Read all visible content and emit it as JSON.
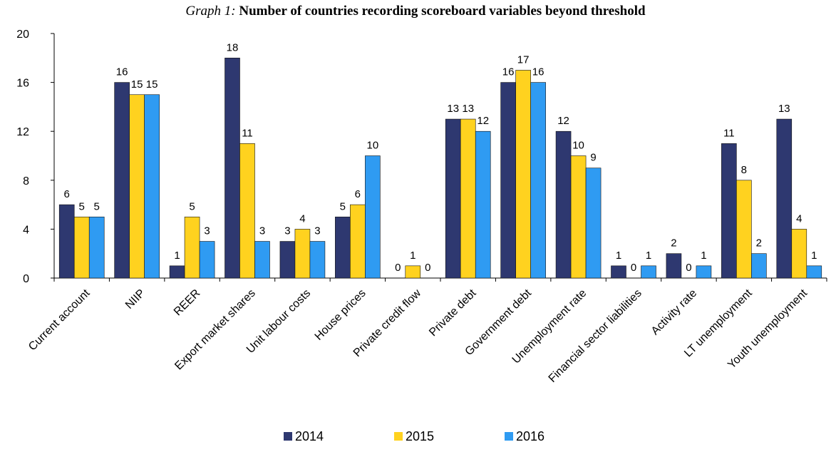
{
  "title_prefix": "Graph 1:",
  "title": "Number of countries recording scoreboard variables beyond threshold",
  "chart_data": {
    "type": "bar",
    "categories": [
      "Current account",
      "NIIP",
      "REER",
      "Export market shares",
      "Unit labour costs",
      "House prices",
      "Private credit flow",
      "Private debt",
      "Government debt",
      "Unemployment rate",
      "Financial sector liabilities",
      "Activity rate",
      "LT unemployment",
      "Youth unemployment"
    ],
    "series": [
      {
        "name": "2014",
        "color": "#2e3870",
        "values": [
          6,
          16,
          1,
          18,
          3,
          5,
          0,
          13,
          16,
          12,
          1,
          2,
          11,
          13
        ]
      },
      {
        "name": "2015",
        "color": "#ffd21f",
        "values": [
          5,
          15,
          5,
          11,
          4,
          6,
          1,
          13,
          17,
          10,
          0,
          0,
          8,
          4
        ]
      },
      {
        "name": "2016",
        "color": "#2f9bf2",
        "values": [
          5,
          15,
          3,
          3,
          3,
          10,
          0,
          12,
          16,
          9,
          1,
          1,
          2,
          1
        ]
      }
    ],
    "ylim": [
      0,
      20
    ],
    "yticks": [
      0,
      4,
      8,
      12,
      16,
      20
    ],
    "grid": false,
    "legend": "bottom-center",
    "data_labels": true
  }
}
